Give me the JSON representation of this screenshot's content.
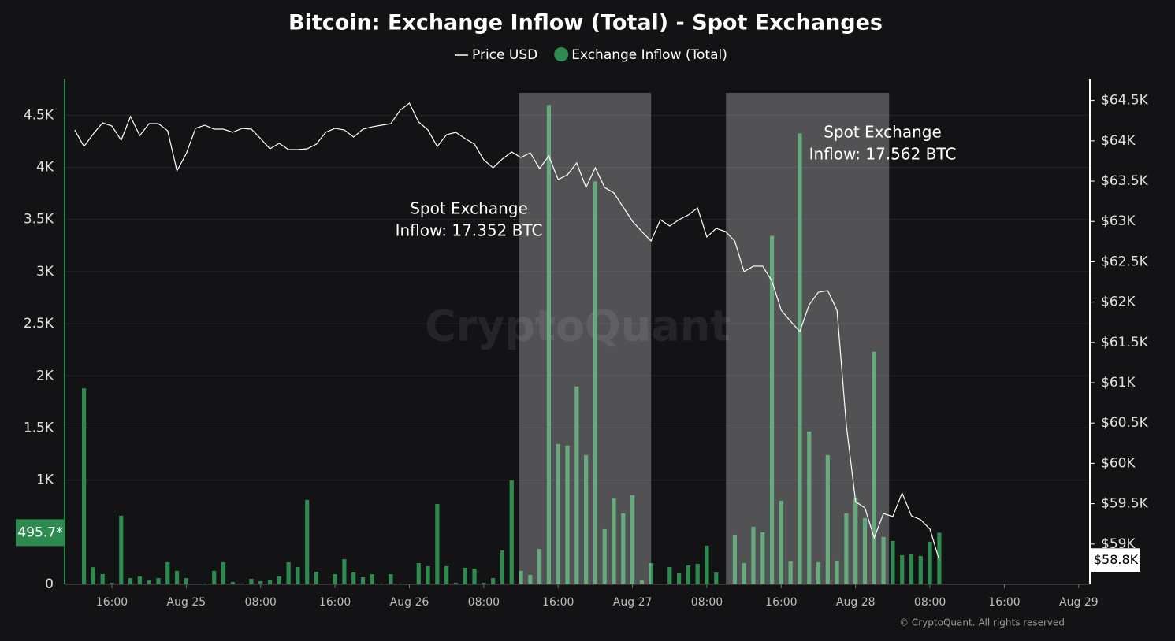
{
  "chart_data": {
    "type": "bar-line",
    "title": "Bitcoin: Exchange Inflow (Total) - Spot Exchanges",
    "xlim": [
      -13,
      97.2
    ],
    "xticks": [
      {
        "value": -8,
        "label": "16:00"
      },
      {
        "value": 0,
        "label": "Aug 25"
      },
      {
        "value": 8,
        "label": "08:00"
      },
      {
        "value": 16,
        "label": "16:00"
      },
      {
        "value": 24,
        "label": "Aug 26"
      },
      {
        "value": 32,
        "label": "08:00"
      },
      {
        "value": 40,
        "label": "16:00"
      },
      {
        "value": 48,
        "label": "Aug 27"
      },
      {
        "value": 56,
        "label": "08:00"
      },
      {
        "value": 64,
        "label": "16:00"
      },
      {
        "value": 72,
        "label": "Aug 28"
      },
      {
        "value": 80,
        "label": "08:00"
      },
      {
        "value": 88,
        "label": "16:00"
      },
      {
        "value": 96,
        "label": "Aug 29"
      }
    ],
    "ylim": [
      0,
      4850
    ],
    "yticks": [
      0,
      {
        "value": 1000,
        "label": "1K"
      },
      {
        "value": 1500,
        "label": "1.5K"
      },
      {
        "value": 2000,
        "label": "2K"
      },
      {
        "value": 2500,
        "label": "2.5K"
      },
      {
        "value": 3000,
        "label": "3K"
      },
      {
        "value": 3500,
        "label": "3.5K"
      },
      {
        "value": 4000,
        "label": "4K"
      },
      {
        "value": 4500,
        "label": "4.5K"
      }
    ],
    "y2lim": [
      58500,
      64770
    ],
    "y2ticks": [
      {
        "value": 59000,
        "label": "$59K"
      },
      {
        "value": 59500,
        "label": "$59.5K"
      },
      {
        "value": 60000,
        "label": "$60K"
      },
      {
        "value": 60500,
        "label": "$60.5K"
      },
      {
        "value": 61000,
        "label": "$61K"
      },
      {
        "value": 61500,
        "label": "$61.5K"
      },
      {
        "value": 62000,
        "label": "$62K"
      },
      {
        "value": 62500,
        "label": "$62.5K"
      },
      {
        "value": 63000,
        "label": "$63K"
      },
      {
        "value": 63500,
        "label": "$63.5K"
      },
      {
        "value": 64000,
        "label": "$64K"
      },
      {
        "value": 64500,
        "label": "$64.5K"
      }
    ],
    "grid": true,
    "highlights": [
      [
        35.8,
        50
      ],
      [
        58.05,
        75.6
      ]
    ],
    "annotations": [
      {
        "lines": [
          "Spot Exchange",
          "Inflow: 17.352 BTC"
        ]
      },
      {
        "lines": [
          "Spot Exchange",
          "Inflow: 17.562 BTC"
        ]
      }
    ],
    "watermark": "CryptoQuant",
    "credit": "© CryptoQuant. All rights reserved",
    "series": [
      {
        "name": "Price USD",
        "type": "line",
        "axis": "y2",
        "color": "#ffffff",
        "last_label": "$58.8K",
        "x": [
          -12,
          -11,
          -10,
          -9,
          -8,
          -7,
          -6,
          -5,
          -4,
          -3,
          -2,
          -1,
          0,
          1,
          2,
          3,
          4,
          5,
          6,
          7,
          8,
          9,
          10,
          11,
          12,
          13,
          14,
          15,
          16,
          17,
          18,
          19,
          20,
          21,
          22,
          23,
          24,
          25,
          26,
          27,
          28,
          29,
          30,
          31,
          32,
          33,
          34,
          35,
          36,
          37,
          38,
          39,
          40,
          41,
          42,
          43,
          44,
          45,
          46,
          47,
          48,
          49,
          50,
          51,
          52,
          53,
          54,
          55,
          56,
          57,
          58,
          59,
          60,
          61,
          62,
          63,
          64,
          65,
          66,
          67,
          68,
          69,
          70,
          71,
          72,
          73,
          74,
          75,
          76,
          77,
          78,
          79,
          80,
          81
        ],
        "values": [
          64135,
          63930,
          64086,
          64223,
          64184,
          64008,
          64301,
          64066,
          64213,
          64213,
          64125,
          63627,
          63842,
          64155,
          64194,
          64145,
          64145,
          64106,
          64155,
          64145,
          64028,
          63901,
          63969,
          63891,
          63891,
          63901,
          63959,
          64106,
          64155,
          64135,
          64047,
          64145,
          64174,
          64194,
          64213,
          64379,
          64467,
          64233,
          64135,
          63930,
          64076,
          64106,
          64028,
          63959,
          63764,
          63666,
          63774,
          63862,
          63793,
          63852,
          63656,
          63813,
          63520,
          63578,
          63725,
          63422,
          63666,
          63422,
          63354,
          63178,
          63002,
          62875,
          62758,
          63022,
          62944,
          63022,
          63080,
          63168,
          62807,
          62914,
          62875,
          62758,
          62377,
          62446,
          62446,
          62260,
          61899,
          61762,
          61635,
          61967,
          62123,
          62143,
          61899,
          60473,
          59525,
          59447,
          59076,
          59379,
          59340,
          59633,
          59350,
          59301,
          59184,
          58800
        ]
      },
      {
        "name": "Exchange Inflow (Total)",
        "type": "bar",
        "color": "#2e8b4f",
        "last_label": "495.7*",
        "x": [
          -11,
          -10,
          -9,
          -8,
          -7,
          -6,
          -5,
          -4,
          -3,
          -2,
          -1,
          0,
          1,
          2,
          3,
          4,
          5,
          6,
          7,
          8,
          9,
          10,
          11,
          12,
          13,
          14,
          15,
          16,
          17,
          18,
          19,
          20,
          21,
          22,
          23,
          24,
          25,
          26,
          27,
          28,
          29,
          30,
          31,
          32,
          33,
          34,
          35,
          36,
          37,
          38,
          39,
          40,
          41,
          42,
          43,
          44,
          45,
          46,
          47,
          48,
          49,
          50,
          51,
          52,
          53,
          54,
          55,
          56,
          57,
          58,
          59,
          60,
          61,
          62,
          63,
          64,
          65,
          66,
          67,
          68,
          69,
          70,
          71,
          72,
          73,
          74,
          75,
          76,
          77,
          78,
          79,
          80,
          81
        ],
        "values": [
          1880,
          165,
          98,
          15,
          658,
          60,
          76,
          38,
          60,
          212,
          129,
          60,
          3,
          8,
          129,
          212,
          23,
          8,
          53,
          30,
          45,
          76,
          212,
          166,
          809,
          121,
          2,
          98,
          242,
          113,
          68,
          98,
          8,
          98,
          8,
          3,
          204,
          174,
          771,
          174,
          15,
          159,
          151,
          15,
          60,
          325,
          998,
          129,
          91,
          340,
          4598,
          1346,
          1331,
          1898,
          1240,
          3865,
          529,
          824,
          681,
          855,
          38,
          204,
          3,
          166,
          106,
          182,
          197,
          371,
          113,
          3,
          469,
          204,
          552,
          499,
          3343,
          802,
          219,
          4326,
          1467,
          212,
          1240,
          227,
          681,
          832,
          635,
          2231,
          454,
          416,
          280,
          287,
          272,
          408,
          495.7
        ]
      }
    ]
  }
}
